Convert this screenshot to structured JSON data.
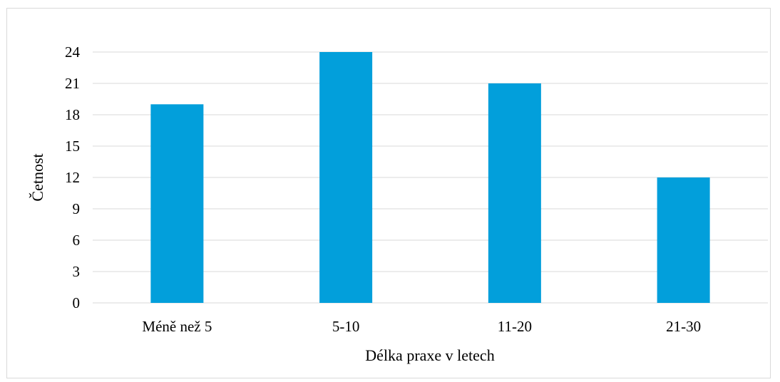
{
  "chart_data": {
    "type": "bar",
    "title": "",
    "xlabel": "Délka praxe v letech",
    "ylabel": "Četnost",
    "categories": [
      "Méně než 5",
      "5-10",
      "11-20",
      "21-30"
    ],
    "values": [
      19,
      24,
      21,
      12
    ],
    "ylim": [
      0,
      24
    ],
    "yticks": [
      0,
      3,
      6,
      9,
      12,
      15,
      18,
      21,
      24
    ],
    "grid": true,
    "legend": "none",
    "colors": {
      "bar": "#029fdb",
      "grid": "#d9d9d9",
      "frame": "#d9d9d9",
      "text": "#000000"
    }
  }
}
